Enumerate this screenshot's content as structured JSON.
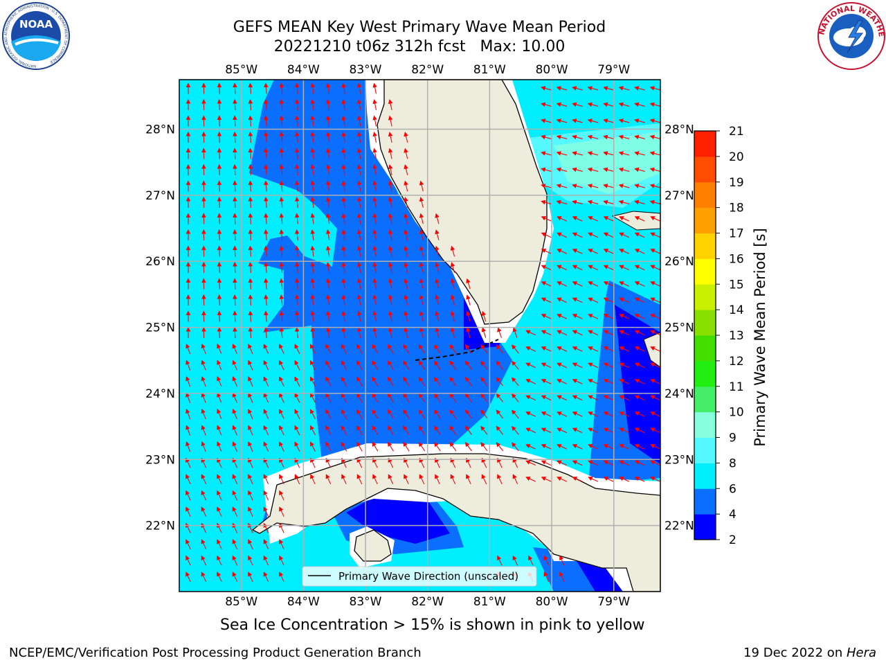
{
  "header": {
    "title_line1": "GEFS MEAN Key West Primary Wave Mean Period",
    "title_line2": "20221210 t06z 312h fcst   Max: 10.00"
  },
  "logos": {
    "left": "noaa-logo",
    "left_text": "NOAA",
    "left_ring_text": "NATIONAL OCEANIC AND ATMOSPHERIC ADMINISTRATION · U.S. DEPARTMENT OF COMMERCE",
    "right": "nws-logo",
    "right_ring_text": "NATIONAL WEATHER SERVICE"
  },
  "map": {
    "lon_labels": [
      "85°W",
      "84°W",
      "83°W",
      "82°W",
      "81°W",
      "80°W",
      "79°W"
    ],
    "lat_labels": [
      "22°N",
      "23°N",
      "24°N",
      "25°N",
      "26°N",
      "27°N",
      "28°N"
    ],
    "lon_range": [
      -86.0,
      -78.25
    ],
    "lat_range": [
      21.0,
      28.75
    ],
    "land_color": "#eeecdc",
    "arrow_color": "#ff0000",
    "coast_color": "#000000",
    "legend_label": "Primary Wave Direction (unscaled)"
  },
  "colorbar": {
    "label": "Primary Wave Mean Period [s]",
    "ticks": [
      "2",
      "4",
      "6",
      "8",
      "9",
      "10",
      "11",
      "12",
      "13",
      "14",
      "15",
      "16",
      "17",
      "18",
      "19",
      "20",
      "21"
    ],
    "colors": [
      "#0000ff",
      "#0a6eff",
      "#00eeff",
      "#55f8ff",
      "#88ffdd",
      "#44ee66",
      "#22ee11",
      "#44dd00",
      "#88e000",
      "#c8f000",
      "#ffff00",
      "#ffd200",
      "#ffa000",
      "#ff8000",
      "#ff4d00",
      "#ff2000"
    ]
  },
  "footer": {
    "subtitle": "Sea Ice Concentration > 15% is shown in pink to yellow",
    "credit": "NCEP/EMC/Verification Post Processing Product Generation Branch",
    "date": "19 Dec 2022 on ",
    "host": "Hera"
  }
}
